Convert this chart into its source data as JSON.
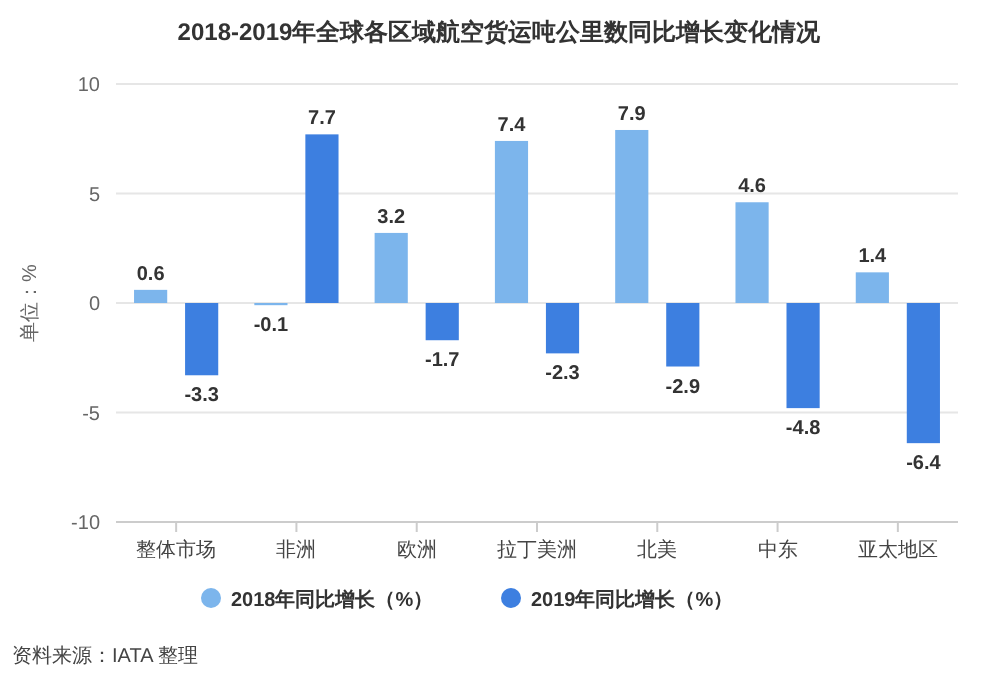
{
  "chart_data": {
    "type": "bar",
    "title": "2018-2019年全球各区域航空货运吨公里数同比增长变化情况",
    "ylabel": "单位：%",
    "categories": [
      "整体市场",
      "非洲",
      "欧洲",
      "拉丁美洲",
      "北美",
      "中东",
      "亚太地区"
    ],
    "series": [
      {
        "name": "2018年同比增长（%）",
        "color": "#7cb5ec",
        "values": [
          0.6,
          -0.1,
          3.2,
          7.4,
          7.9,
          4.6,
          1.4
        ]
      },
      {
        "name": "2019年同比增长（%）",
        "color": "#3d7fe0",
        "values": [
          -3.3,
          7.7,
          -1.7,
          -2.3,
          -2.9,
          -4.8,
          -6.4
        ]
      }
    ],
    "ylim": [
      -10,
      10
    ],
    "yticks": [
      -10,
      -5,
      0,
      5,
      10
    ],
    "grid": "y",
    "legend": "bottom",
    "data_labels": true,
    "annotations": [
      "资料来源：IATA 整理"
    ]
  }
}
